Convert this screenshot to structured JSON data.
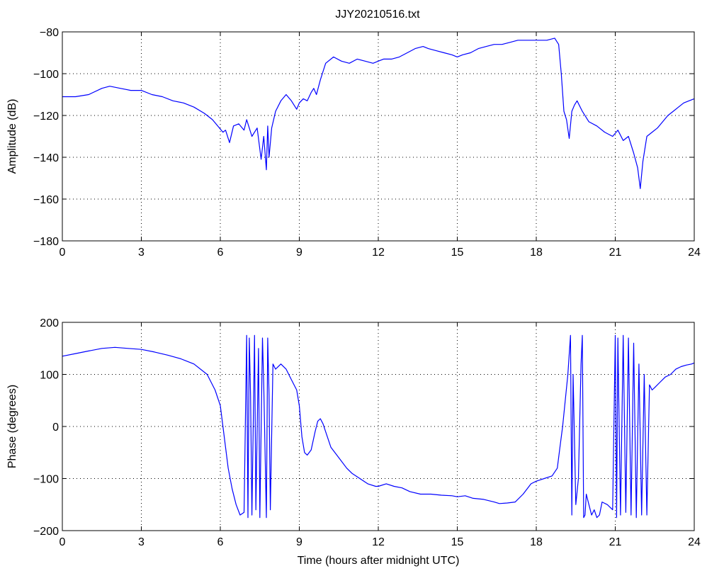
{
  "title": "JJY20210516.txt",
  "chart_data": [
    {
      "type": "line",
      "title": "JJY20210516.txt",
      "xlabel": "",
      "ylabel": "Amplitude (dB)",
      "xlim": [
        0,
        24
      ],
      "ylim": [
        -180,
        -80
      ],
      "xticks": [
        0,
        3,
        6,
        9,
        12,
        15,
        18,
        21,
        24
      ],
      "yticks": [
        -180,
        -160,
        -140,
        -120,
        -100,
        -80
      ],
      "grid": true,
      "line_color": "#0000ff",
      "series": [
        {
          "x": [
            0,
            0.5,
            1.0,
            1.5,
            1.8,
            2.2,
            2.6,
            3.0,
            3.4,
            3.8,
            4.2,
            4.6,
            5.0,
            5.4,
            5.7,
            5.9,
            6.1,
            6.2,
            6.35,
            6.5,
            6.7,
            6.9,
            7.0,
            7.2,
            7.4,
            7.55,
            7.65,
            7.75,
            7.8,
            7.85,
            7.95,
            8.1,
            8.3,
            8.5,
            8.7,
            8.9,
            9.0,
            9.15,
            9.3,
            9.45,
            9.55,
            9.65,
            9.8,
            10.0,
            10.3,
            10.6,
            10.9,
            11.2,
            11.5,
            11.8,
            12.0,
            12.2,
            12.5,
            12.8,
            13.1,
            13.4,
            13.7,
            13.9,
            14.2,
            14.5,
            14.8,
            15.0,
            15.2,
            15.5,
            15.8,
            16.1,
            16.4,
            16.7,
            17.0,
            17.3,
            17.5,
            17.8,
            18.1,
            18.4,
            18.7,
            18.85,
            18.95,
            19.05,
            19.15,
            19.25,
            19.35,
            19.45,
            19.55,
            19.75,
            20.0,
            20.3,
            20.6,
            20.9,
            21.1,
            21.3,
            21.5,
            21.7,
            21.85,
            21.95,
            22.05,
            22.2,
            22.4,
            22.6,
            22.8,
            23.0,
            23.2,
            23.4,
            23.6,
            23.8,
            24.0
          ],
          "y": [
            -111,
            -111,
            -110,
            -107,
            -106,
            -107,
            -108,
            -108,
            -110,
            -111,
            -113,
            -114,
            -116,
            -119,
            -122,
            -125,
            -128,
            -127,
            -133,
            -125,
            -124,
            -127,
            -122,
            -130,
            -126,
            -141,
            -130,
            -146,
            -125,
            -140,
            -126,
            -118,
            -113,
            -110,
            -113,
            -117,
            -114,
            -112,
            -113,
            -109,
            -107,
            -110,
            -103,
            -95,
            -92,
            -94,
            -95,
            -93,
            -94,
            -95,
            -94,
            -93,
            -93,
            -92,
            -90,
            -88,
            -87,
            -88,
            -89,
            -90,
            -91,
            -92,
            -91,
            -90,
            -88,
            -87,
            -86,
            -86,
            -85,
            -84,
            -84,
            -84,
            -84,
            -84,
            -83,
            -86,
            -100,
            -118,
            -122,
            -131,
            -118,
            -115,
            -113,
            -118,
            -123,
            -125,
            -128,
            -130,
            -127,
            -132,
            -130,
            -138,
            -145,
            -155,
            -142,
            -130,
            -128,
            -126,
            -123,
            -120,
            -118,
            -116,
            -114,
            -113,
            -112
          ]
        }
      ]
    },
    {
      "type": "line",
      "title": "",
      "xlabel": "Time (hours after midnight UTC)",
      "ylabel": "Phase (degrees)",
      "xlim": [
        0,
        24
      ],
      "ylim": [
        -200,
        200
      ],
      "xticks": [
        0,
        3,
        6,
        9,
        12,
        15,
        18,
        21,
        24
      ],
      "yticks": [
        -200,
        -100,
        0,
        100,
        200
      ],
      "grid": true,
      "line_color": "#0000ff",
      "series": [
        {
          "x": [
            0,
            0.5,
            1.0,
            1.5,
            2.0,
            2.5,
            3.0,
            3.5,
            4.0,
            4.5,
            5.0,
            5.5,
            5.8,
            6.0,
            6.1,
            6.2,
            6.3,
            6.45,
            6.6,
            6.75,
            6.9,
            7.0,
            7.05,
            7.1,
            7.15,
            7.2,
            7.3,
            7.35,
            7.45,
            7.5,
            7.6,
            7.65,
            7.75,
            7.8,
            7.85,
            7.9,
            8.0,
            8.1,
            8.3,
            8.5,
            8.7,
            8.9,
            9.0,
            9.1,
            9.2,
            9.3,
            9.45,
            9.6,
            9.7,
            9.8,
            9.9,
            10.0,
            10.2,
            10.5,
            10.8,
            11.0,
            11.3,
            11.6,
            11.9,
            12.0,
            12.3,
            12.6,
            12.9,
            13.2,
            13.6,
            14.0,
            14.4,
            14.8,
            15.0,
            15.3,
            15.6,
            16.0,
            16.4,
            16.6,
            16.9,
            17.2,
            17.5,
            17.8,
            18.0,
            18.3,
            18.6,
            18.8,
            18.9,
            19.0,
            19.1,
            19.2,
            19.3,
            19.35,
            19.4,
            19.5,
            19.6,
            19.7,
            19.75,
            19.8,
            19.85,
            19.9,
            20.0,
            20.1,
            20.2,
            20.3,
            20.4,
            20.5,
            20.7,
            20.9,
            21.0,
            21.05,
            21.1,
            21.2,
            21.3,
            21.4,
            21.5,
            21.6,
            21.7,
            21.8,
            21.9,
            22.0,
            22.1,
            22.2,
            22.3,
            22.4,
            22.5,
            22.7,
            22.9,
            23.1,
            23.3,
            23.5,
            23.7,
            23.9,
            24.0
          ],
          "y": [
            135,
            140,
            145,
            150,
            152,
            150,
            148,
            143,
            137,
            130,
            120,
            100,
            70,
            40,
            0,
            -40,
            -80,
            -120,
            -150,
            -170,
            -165,
            175,
            -175,
            170,
            60,
            -170,
            175,
            -160,
            150,
            -175,
            170,
            80,
            -175,
            170,
            60,
            -160,
            120,
            110,
            120,
            110,
            90,
            70,
            40,
            -20,
            -50,
            -55,
            -45,
            -10,
            10,
            15,
            5,
            -10,
            -40,
            -60,
            -80,
            -90,
            -100,
            -110,
            -115,
            -115,
            -110,
            -115,
            -118,
            -125,
            -130,
            -130,
            -132,
            -133,
            -135,
            -133,
            -138,
            -140,
            -145,
            -148,
            -147,
            -145,
            -130,
            -110,
            -105,
            -100,
            -95,
            -80,
            -40,
            0,
            50,
            100,
            175,
            -170,
            100,
            -150,
            -100,
            120,
            175,
            -175,
            -170,
            -130,
            -150,
            -170,
            -160,
            -175,
            -170,
            -145,
            -150,
            -160,
            175,
            -175,
            170,
            -170,
            175,
            -165,
            170,
            -170,
            160,
            -175,
            120,
            -170,
            100,
            -170,
            80,
            70,
            75,
            85,
            95,
            100,
            110,
            115,
            118,
            120,
            122
          ]
        }
      ]
    }
  ]
}
